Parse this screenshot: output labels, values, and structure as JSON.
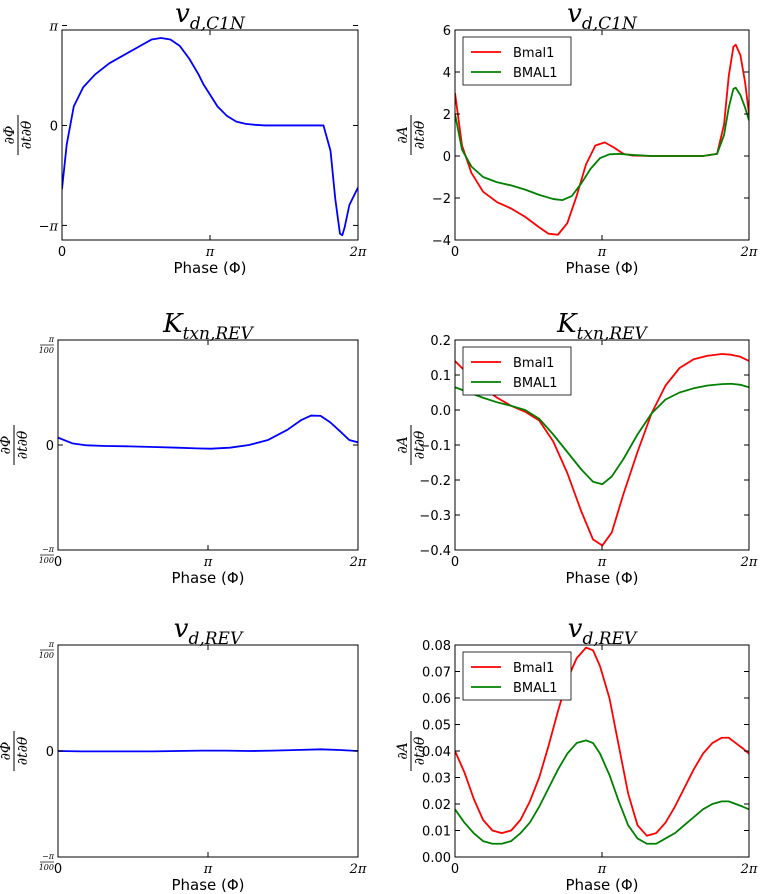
{
  "chart_data": [
    {
      "type": "line",
      "title": "v_{d,C1N}",
      "xlabel": "Phase (Φ)",
      "ylabel": "∂Φ/∂t∂θ",
      "xlim": [
        0,
        6.2832
      ],
      "ylim": [
        -3.6,
        3.0
      ],
      "yticks": [
        {
          "v": 3.1416,
          "label": "π"
        },
        {
          "v": 0,
          "label": "0"
        },
        {
          "v": -3.1416,
          "label": "−π"
        }
      ],
      "xticks": [
        {
          "v": 0,
          "label": "0"
        },
        {
          "v": 3.1416,
          "label": "π"
        },
        {
          "v": 6.2832,
          "label": "2π"
        }
      ],
      "series": [
        {
          "name": "",
          "color": "#0000ff",
          "x": [
            0,
            0.1,
            0.25,
            0.45,
            0.7,
            1.0,
            1.3,
            1.6,
            1.9,
            2.1,
            2.3,
            2.5,
            2.7,
            2.9,
            3.0,
            3.15,
            3.3,
            3.5,
            3.7,
            3.9,
            4.1,
            4.3,
            4.6,
            5.0,
            5.3,
            5.55,
            5.7,
            5.8,
            5.9,
            5.95,
            6.0,
            6.1,
            6.2832
          ],
          "y": [
            -2.0,
            -0.6,
            0.6,
            1.2,
            1.6,
            1.95,
            2.2,
            2.45,
            2.7,
            2.75,
            2.7,
            2.5,
            2.1,
            1.6,
            1.3,
            0.95,
            0.6,
            0.3,
            0.12,
            0.05,
            0.02,
            0.0,
            0.0,
            0.0,
            0.0,
            0.0,
            -0.8,
            -2.3,
            -3.4,
            -3.45,
            -3.2,
            -2.5,
            -1.95
          ]
        }
      ]
    },
    {
      "type": "line",
      "title": "v_{d,C1N}",
      "xlabel": "Phase (Φ)",
      "ylabel": "∂A/∂t∂θ",
      "xlim": [
        0,
        6.2832
      ],
      "ylim": [
        -4,
        6
      ],
      "yticks": [
        {
          "v": 6,
          "label": "6"
        },
        {
          "v": 4,
          "label": "4"
        },
        {
          "v": 2,
          "label": "2"
        },
        {
          "v": 0,
          "label": "0"
        },
        {
          "v": -2,
          "label": "−2"
        },
        {
          "v": -4,
          "label": "−4"
        }
      ],
      "xticks": [
        {
          "v": 0,
          "label": "0"
        },
        {
          "v": 3.1416,
          "label": "π"
        },
        {
          "v": 6.2832,
          "label": "2π"
        }
      ],
      "legend": [
        "Bmal1",
        "BMAL1"
      ],
      "series": [
        {
          "name": "Bmal1",
          "color": "#ff0000",
          "x": [
            0,
            0.15,
            0.35,
            0.6,
            0.9,
            1.2,
            1.5,
            1.8,
            2.0,
            2.2,
            2.4,
            2.6,
            2.8,
            3.0,
            3.2,
            3.4,
            3.6,
            3.8,
            4.2,
            4.8,
            5.3,
            5.6,
            5.75,
            5.85,
            5.95,
            6.0,
            6.1,
            6.2,
            6.2832
          ],
          "y": [
            3.0,
            0.5,
            -0.8,
            -1.7,
            -2.2,
            -2.5,
            -2.9,
            -3.4,
            -3.7,
            -3.75,
            -3.2,
            -1.9,
            -0.4,
            0.5,
            0.65,
            0.4,
            0.1,
            0.02,
            0.0,
            0.0,
            0.0,
            0.1,
            1.5,
            3.8,
            5.2,
            5.3,
            4.8,
            3.5,
            2.0
          ]
        },
        {
          "name": "BMAL1",
          "color": "#008000",
          "x": [
            0,
            0.15,
            0.35,
            0.6,
            0.9,
            1.2,
            1.5,
            1.8,
            2.1,
            2.3,
            2.5,
            2.7,
            2.9,
            3.1,
            3.3,
            3.5,
            3.8,
            4.2,
            4.8,
            5.3,
            5.6,
            5.75,
            5.85,
            5.95,
            6.0,
            6.1,
            6.2,
            6.2832
          ],
          "y": [
            2.0,
            0.3,
            -0.5,
            -1.0,
            -1.25,
            -1.4,
            -1.6,
            -1.85,
            -2.05,
            -2.1,
            -1.9,
            -1.3,
            -0.6,
            -0.1,
            0.08,
            0.1,
            0.05,
            0.0,
            0.0,
            0.0,
            0.1,
            1.0,
            2.3,
            3.2,
            3.25,
            2.9,
            2.3,
            1.7
          ]
        }
      ]
    },
    {
      "type": "line",
      "title": "K_{txn,REV}",
      "xlabel": "Phase (Φ)",
      "ylabel": "∂Φ/∂t∂θ",
      "xlim": [
        0,
        6.2832
      ],
      "ylim": [
        -0.0314,
        0.0314
      ],
      "yticks": [
        {
          "v": 0.0314,
          "label": "π/100",
          "small": true
        },
        {
          "v": 0,
          "label": "0"
        },
        {
          "v": -0.0314,
          "label": "−π/100",
          "small": true
        }
      ],
      "xticks": [
        {
          "v": 0,
          "label": "0"
        },
        {
          "v": 3.1416,
          "label": "π"
        },
        {
          "v": 6.2832,
          "label": "2π"
        }
      ],
      "series": [
        {
          "name": "",
          "color": "#0000ff",
          "x": [
            0,
            0.3,
            0.6,
            1.0,
            1.5,
            2.0,
            2.5,
            2.9,
            3.2,
            3.6,
            4.0,
            4.4,
            4.8,
            5.1,
            5.3,
            5.5,
            5.7,
            5.9,
            6.1,
            6.2832
          ],
          "y": [
            0.0022,
            0.0005,
            -0.0001,
            -0.0003,
            -0.0004,
            -0.0006,
            -0.0008,
            -0.001,
            -0.0011,
            -0.0008,
            0.0,
            0.0015,
            0.0045,
            0.0075,
            0.0088,
            0.0087,
            0.0068,
            0.0042,
            0.0015,
            0.0008
          ]
        }
      ]
    },
    {
      "type": "line",
      "title": "K_{txn,REV}",
      "xlabel": "Phase (Φ)",
      "ylabel": "∂A/∂t∂θ",
      "xlim": [
        0,
        6.2832
      ],
      "ylim": [
        -0.4,
        0.2
      ],
      "yticks": [
        {
          "v": 0.2,
          "label": "0.2"
        },
        {
          "v": 0.1,
          "label": "0.1"
        },
        {
          "v": 0.0,
          "label": "0.0"
        },
        {
          "v": -0.1,
          "label": "−0.1"
        },
        {
          "v": -0.2,
          "label": "−0.2"
        },
        {
          "v": -0.3,
          "label": "−0.3"
        },
        {
          "v": -0.4,
          "label": "−0.4"
        }
      ],
      "xticks": [
        {
          "v": 0,
          "label": "0"
        },
        {
          "v": 3.1416,
          "label": "π"
        },
        {
          "v": 6.2832,
          "label": "2π"
        }
      ],
      "legend": [
        "Bmal1",
        "BMAL1"
      ],
      "series": [
        {
          "name": "Bmal1",
          "color": "#ff0000",
          "x": [
            0,
            0.3,
            0.6,
            0.9,
            1.2,
            1.5,
            1.8,
            2.1,
            2.4,
            2.7,
            2.95,
            3.15,
            3.35,
            3.6,
            3.9,
            4.2,
            4.5,
            4.8,
            5.1,
            5.4,
            5.7,
            5.9,
            6.1,
            6.2832
          ],
          "y": [
            0.14,
            0.1,
            0.065,
            0.035,
            0.012,
            -0.005,
            -0.03,
            -0.09,
            -0.18,
            -0.29,
            -0.37,
            -0.387,
            -0.35,
            -0.24,
            -0.12,
            -0.01,
            0.07,
            0.12,
            0.145,
            0.155,
            0.16,
            0.158,
            0.152,
            0.14
          ]
        },
        {
          "name": "BMAL1",
          "color": "#008000",
          "x": [
            0,
            0.3,
            0.6,
            0.9,
            1.2,
            1.5,
            1.8,
            2.1,
            2.4,
            2.7,
            2.95,
            3.15,
            3.35,
            3.6,
            3.9,
            4.2,
            4.5,
            4.8,
            5.1,
            5.4,
            5.7,
            5.9,
            6.1,
            6.2832
          ],
          "y": [
            0.065,
            0.05,
            0.035,
            0.022,
            0.012,
            0.0,
            -0.025,
            -0.07,
            -0.12,
            -0.17,
            -0.205,
            -0.212,
            -0.19,
            -0.14,
            -0.07,
            -0.01,
            0.03,
            0.05,
            0.062,
            0.07,
            0.074,
            0.075,
            0.072,
            0.065
          ]
        }
      ]
    },
    {
      "type": "line",
      "title": "v_{d,REV}",
      "xlabel": "Phase (Φ)",
      "ylabel": "∂Φ/∂t∂θ",
      "xlim": [
        0,
        6.2832
      ],
      "ylim": [
        -0.0314,
        0.0314
      ],
      "yticks": [
        {
          "v": 0.0314,
          "label": "π/100",
          "small": true
        },
        {
          "v": 0,
          "label": "0"
        },
        {
          "v": -0.0314,
          "label": "−π/100",
          "small": true
        }
      ],
      "xticks": [
        {
          "v": 0,
          "label": "0"
        },
        {
          "v": 3.1416,
          "label": "π"
        },
        {
          "v": 6.2832,
          "label": "2π"
        }
      ],
      "series": [
        {
          "name": "",
          "color": "#0000ff",
          "x": [
            0,
            0.5,
            1.0,
            1.5,
            2.0,
            2.5,
            3.0,
            3.5,
            4.0,
            4.5,
            5.0,
            5.5,
            5.9,
            6.2832
          ],
          "y": [
            0.0,
            -0.0001,
            -0.0001,
            -0.0001,
            -0.0001,
            0.0,
            0.0001,
            0.0001,
            0.0,
            0.0001,
            0.0003,
            0.0005,
            0.0003,
            0.0
          ]
        }
      ]
    },
    {
      "type": "line",
      "title": "v_{d,REV}",
      "xlabel": "Phase (Φ)",
      "ylabel": "∂A/∂t∂θ",
      "xlim": [
        0,
        6.2832
      ],
      "ylim": [
        0.0,
        0.08
      ],
      "yticks": [
        {
          "v": 0.08,
          "label": "0.08"
        },
        {
          "v": 0.07,
          "label": "0.07"
        },
        {
          "v": 0.06,
          "label": "0.06"
        },
        {
          "v": 0.05,
          "label": "0.05"
        },
        {
          "v": 0.04,
          "label": "0.04"
        },
        {
          "v": 0.03,
          "label": "0.03"
        },
        {
          "v": 0.02,
          "label": "0.02"
        },
        {
          "v": 0.01,
          "label": "0.01"
        },
        {
          "v": 0.0,
          "label": "0.00"
        }
      ],
      "xticks": [
        {
          "v": 0,
          "label": "0"
        },
        {
          "v": 3.1416,
          "label": "π"
        },
        {
          "v": 6.2832,
          "label": "2π"
        }
      ],
      "legend": [
        "Bmal1",
        "BMAL1"
      ],
      "series": [
        {
          "name": "Bmal1",
          "color": "#ff0000",
          "x": [
            0,
            0.2,
            0.4,
            0.6,
            0.8,
            1.0,
            1.2,
            1.4,
            1.6,
            1.8,
            2.0,
            2.2,
            2.4,
            2.6,
            2.8,
            2.95,
            3.1,
            3.3,
            3.5,
            3.7,
            3.9,
            4.1,
            4.3,
            4.5,
            4.7,
            4.9,
            5.1,
            5.3,
            5.5,
            5.7,
            5.85,
            6.0,
            6.15,
            6.2832
          ],
          "y": [
            0.04,
            0.032,
            0.022,
            0.014,
            0.01,
            0.009,
            0.01,
            0.014,
            0.021,
            0.03,
            0.042,
            0.055,
            0.067,
            0.075,
            0.079,
            0.078,
            0.072,
            0.06,
            0.042,
            0.024,
            0.012,
            0.008,
            0.009,
            0.013,
            0.019,
            0.026,
            0.033,
            0.039,
            0.043,
            0.045,
            0.045,
            0.043,
            0.041,
            0.039
          ]
        },
        {
          "name": "BMAL1",
          "color": "#008000",
          "x": [
            0,
            0.2,
            0.4,
            0.6,
            0.8,
            1.0,
            1.2,
            1.4,
            1.6,
            1.8,
            2.0,
            2.2,
            2.4,
            2.6,
            2.8,
            2.95,
            3.1,
            3.3,
            3.5,
            3.7,
            3.9,
            4.1,
            4.3,
            4.5,
            4.7,
            4.9,
            5.1,
            5.3,
            5.5,
            5.7,
            5.85,
            6.0,
            6.15,
            6.2832
          ],
          "y": [
            0.018,
            0.013,
            0.009,
            0.006,
            0.005,
            0.005,
            0.006,
            0.009,
            0.013,
            0.019,
            0.026,
            0.033,
            0.039,
            0.043,
            0.044,
            0.043,
            0.039,
            0.031,
            0.021,
            0.012,
            0.007,
            0.005,
            0.005,
            0.007,
            0.009,
            0.012,
            0.015,
            0.018,
            0.02,
            0.021,
            0.021,
            0.02,
            0.019,
            0.018
          ]
        }
      ]
    }
  ]
}
